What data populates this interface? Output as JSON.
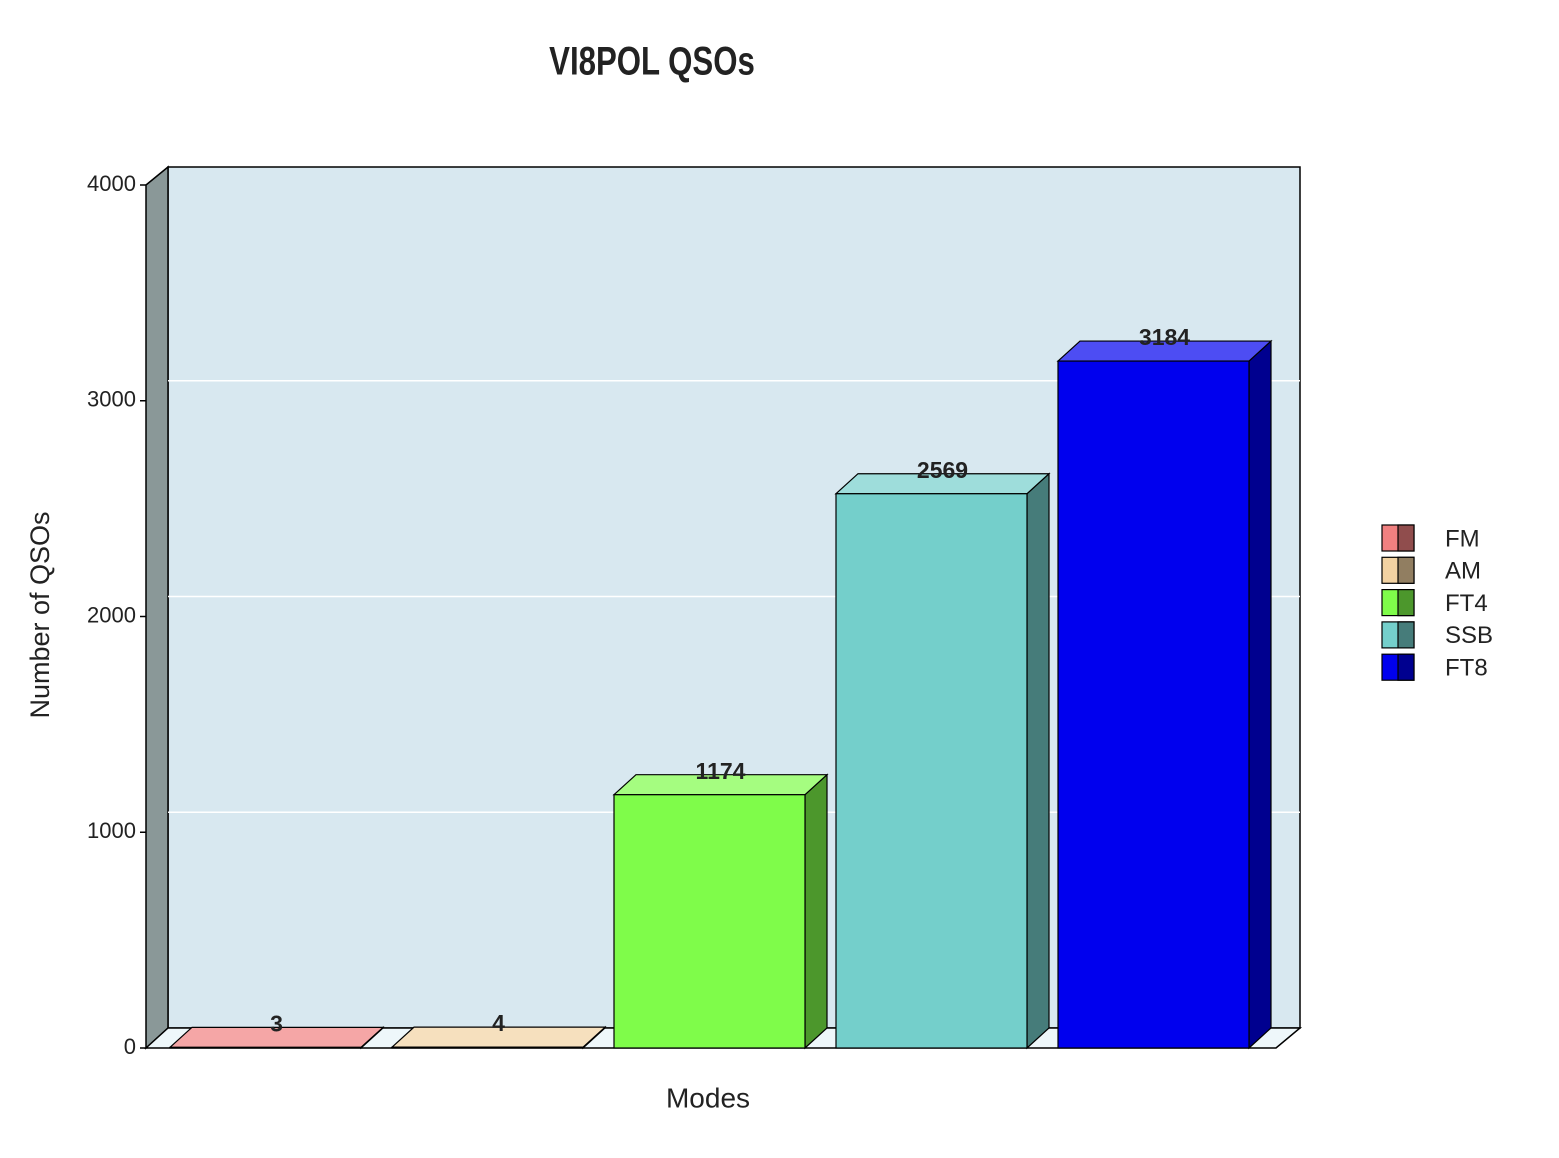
{
  "chart_data": {
    "type": "bar3d",
    "title": "VI8POL QSOs",
    "x_label": "Modes",
    "y_label": "Number of QSOs",
    "series": [
      {
        "name": "FM",
        "color": "#f08080",
        "values": [
          3
        ]
      },
      {
        "name": "AM",
        "color": "#f2d2a2",
        "values": [
          4
        ]
      },
      {
        "name": "FT4",
        "color": "#7ffc4a",
        "values": [
          1174
        ]
      },
      {
        "name": "SSB",
        "color": "#74cfcb",
        "values": [
          2569
        ]
      },
      {
        "name": "FT8",
        "color": "#0000ee",
        "values": [
          3184
        ]
      }
    ],
    "ylim": [
      0,
      4000
    ],
    "yticks": [
      0,
      1000,
      2000,
      3000,
      4000
    ],
    "grid": true
  }
}
